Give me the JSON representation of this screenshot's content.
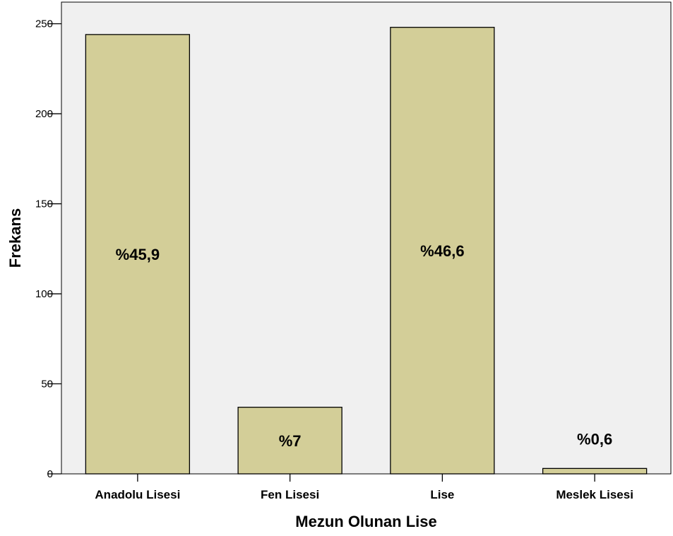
{
  "chart_data": {
    "type": "bar",
    "title": "",
    "xlabel": "Mezun Olunan Lise",
    "ylabel": "Frekans",
    "categories": [
      "Anadolu Lisesi",
      "Fen Lisesi",
      "Lise",
      "Meslek Lisesi"
    ],
    "values": [
      244,
      37,
      248,
      3
    ],
    "data_labels": [
      "%45,9",
      "%7",
      "%46,6",
      "%0,6"
    ],
    "ylim": [
      0,
      262
    ],
    "yticks": [
      0,
      50,
      100,
      150,
      200,
      250
    ],
    "ytick_labels": [
      "0",
      "50",
      "100",
      "150",
      "200",
      "250"
    ],
    "grid": false,
    "legend": "none",
    "colors": {
      "bar_fill": "#d3ce98",
      "bar_stroke": "#000000",
      "plot_background": "#f0f0f0",
      "axis": "#000000",
      "text": "#000000"
    }
  }
}
